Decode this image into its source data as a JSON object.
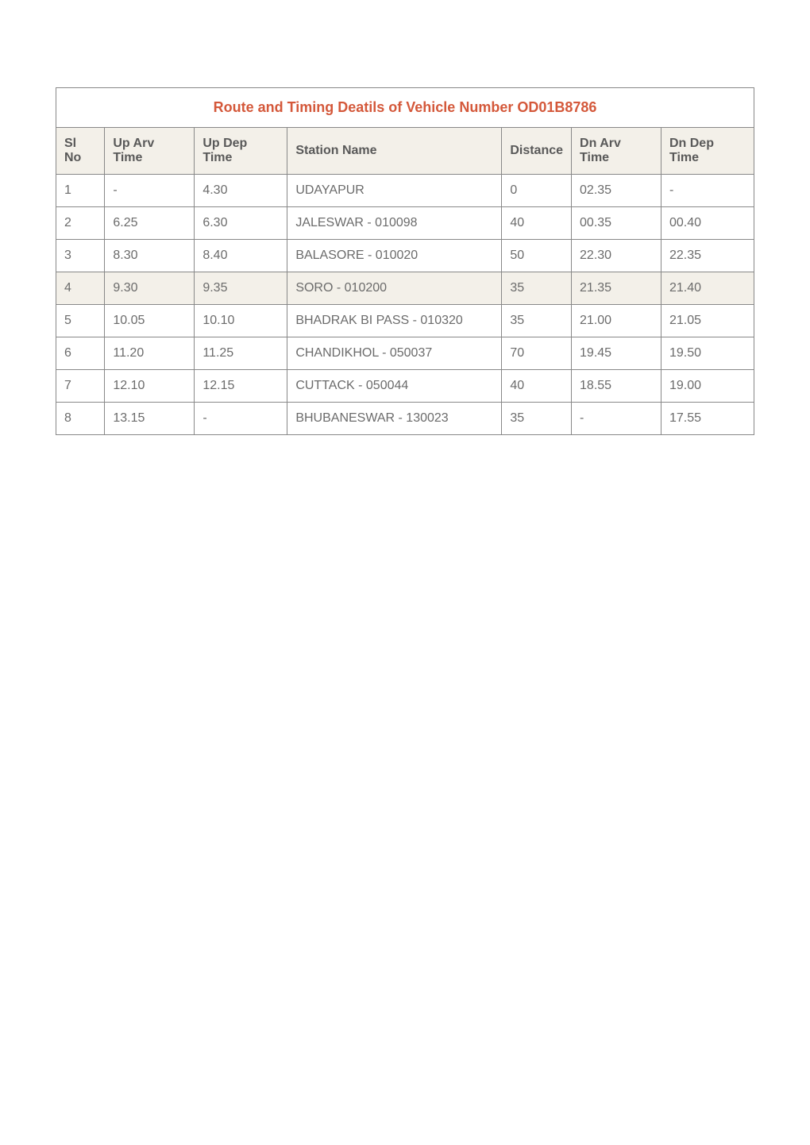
{
  "title": "Route and Timing Deatils of Vehicle Number OD01B8786",
  "columns": {
    "sl_no": "Sl No",
    "up_arv": "Up Arv Time",
    "up_dep": "Up Dep Time",
    "station": "Station Name",
    "distance": "Distance",
    "dn_arv": "Dn Arv Time",
    "dn_dep": "Dn Dep Time"
  },
  "rows": [
    {
      "sl": "1",
      "up_arv": "-",
      "up_dep": "4.30",
      "station": "UDAYAPUR",
      "distance": "0",
      "dn_arv": "02.35",
      "dn_dep": "-"
    },
    {
      "sl": "2",
      "up_arv": "6.25",
      "up_dep": "6.30",
      "station": "JALESWAR - 010098",
      "distance": "40",
      "dn_arv": "00.35",
      "dn_dep": "00.40"
    },
    {
      "sl": "3",
      "up_arv": "8.30",
      "up_dep": "8.40",
      "station": "BALASORE - 010020",
      "distance": "50",
      "dn_arv": "22.30",
      "dn_dep": "22.35"
    },
    {
      "sl": "4",
      "up_arv": "9.30",
      "up_dep": "9.35",
      "station": "SORO - 010200",
      "distance": "35",
      "dn_arv": "21.35",
      "dn_dep": "21.40"
    },
    {
      "sl": "5",
      "up_arv": "10.05",
      "up_dep": "10.10",
      "station": "BHADRAK BI PASS - 010320",
      "distance": "35",
      "dn_arv": "21.00",
      "dn_dep": "21.05"
    },
    {
      "sl": "6",
      "up_arv": "11.20",
      "up_dep": "11.25",
      "station": "CHANDIKHOL - 050037",
      "distance": "70",
      "dn_arv": "19.45",
      "dn_dep": "19.50"
    },
    {
      "sl": "7",
      "up_arv": "12.10",
      "up_dep": "12.15",
      "station": "CUTTACK - 050044",
      "distance": "40",
      "dn_arv": "18.55",
      "dn_dep": "19.00"
    },
    {
      "sl": "8",
      "up_arv": "13.15",
      "up_dep": "-",
      "station": "BHUBANESWAR - 130023",
      "distance": "35",
      "dn_arv": "-",
      "dn_dep": "17.55"
    }
  ],
  "highlight_row_index": 3,
  "colors": {
    "title": "#d4583a",
    "header_bg": "#f3f0e9",
    "text": "#6b6b6b",
    "border": "#888888",
    "background": "#ffffff"
  }
}
